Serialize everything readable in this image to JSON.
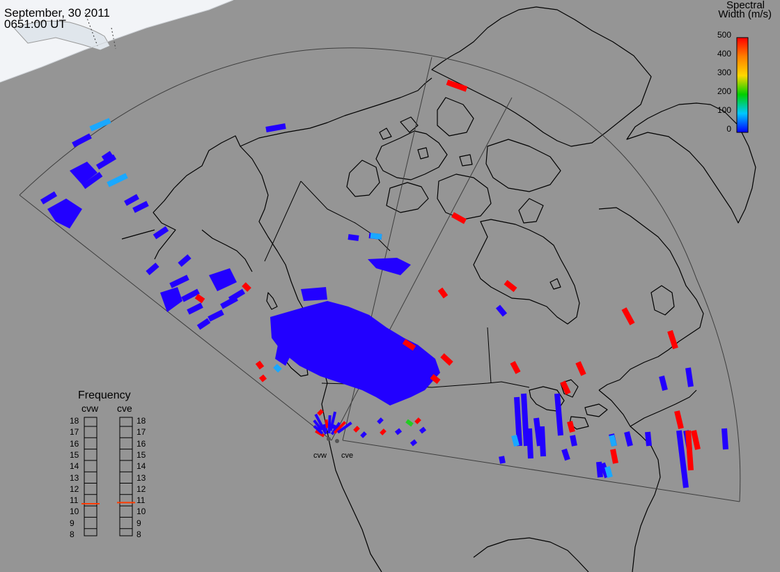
{
  "title": {
    "date": "September, 30 2011",
    "time": "0651:00 UT"
  },
  "colorbar": {
    "title_line1": "Spectral",
    "title_line2": "Width (m/s)",
    "ticks": [
      "500",
      "400",
      "300",
      "200",
      "100",
      "0"
    ],
    "colors": [
      "#ff0000",
      "#ff7f00",
      "#ffd800",
      "#00d000",
      "#00c8ff",
      "#0000ff"
    ]
  },
  "frequency": {
    "title": "Frequency",
    "radars": [
      "cvw",
      "cve"
    ],
    "levels": [
      "18",
      "17",
      "16",
      "15",
      "14",
      "13",
      "12",
      "11",
      "10",
      "9",
      "8"
    ],
    "cvw_mhz": 10.7,
    "cve_mhz": 10.8
  },
  "sites": {
    "west": "cvw",
    "east": "cve"
  },
  "colors": {
    "background": "#959595",
    "daylight": "#f2f4f7",
    "scatter_blue": "#2200ff",
    "scatter_red": "#ff0000",
    "scatter_cyan": "#1aa8ff",
    "scatter_green": "#22cc22",
    "coastline": "#000000",
    "fov_edge": "#444444"
  }
}
